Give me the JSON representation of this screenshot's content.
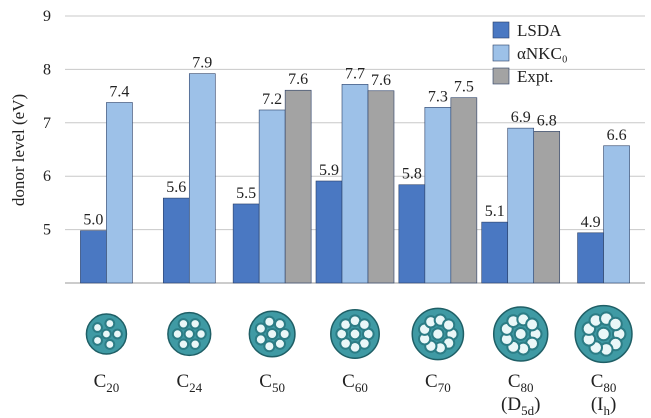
{
  "chart_data": {
    "type": "bar",
    "y_label": "donor level (eV)",
    "categories": [
      {
        "text": "C",
        "sub": "20"
      },
      {
        "text": "C",
        "sub": "24"
      },
      {
        "text": "C",
        "sub": "50"
      },
      {
        "text": "C",
        "sub": "60"
      },
      {
        "text": "C",
        "sub": "70"
      },
      {
        "text": "C",
        "sub": "80",
        "line2": {
          "text": "(D",
          "sub": "5d",
          "end": ")"
        }
      },
      {
        "text": "C",
        "sub": "80",
        "line2": {
          "text": "(I",
          "sub": "h",
          "end": ")"
        }
      }
    ],
    "series": [
      {
        "name": "LSDA",
        "color": "#4a78c2",
        "values": [
          4.98,
          5.59,
          5.48,
          5.91,
          5.84,
          5.14,
          4.94
        ],
        "value_labels": [
          "5.0",
          "5.6",
          "5.5",
          "5.9",
          "5.8",
          "5.1",
          "4.9"
        ]
      },
      {
        "name": "αNKC₀",
        "color": "#9dc1e8",
        "values": [
          7.38,
          7.92,
          7.24,
          7.72,
          7.29,
          6.9,
          6.57
        ],
        "value_labels": [
          "7.4",
          "7.9",
          "7.2",
          "7.7",
          "7.3",
          "6.9",
          "6.6"
        ]
      },
      {
        "name": "Expt.",
        "color": "#a3a3a3",
        "values": [
          null,
          null,
          7.61,
          7.6,
          7.47,
          6.84,
          null
        ],
        "value_labels": [
          null,
          null,
          "7.6",
          "7.6",
          "7.5",
          "6.8",
          null
        ]
      }
    ],
    "ylim": [
      4,
      9
    ],
    "yticks": [
      5,
      6,
      7,
      8,
      9
    ],
    "grid": true,
    "legend": "top-right"
  }
}
